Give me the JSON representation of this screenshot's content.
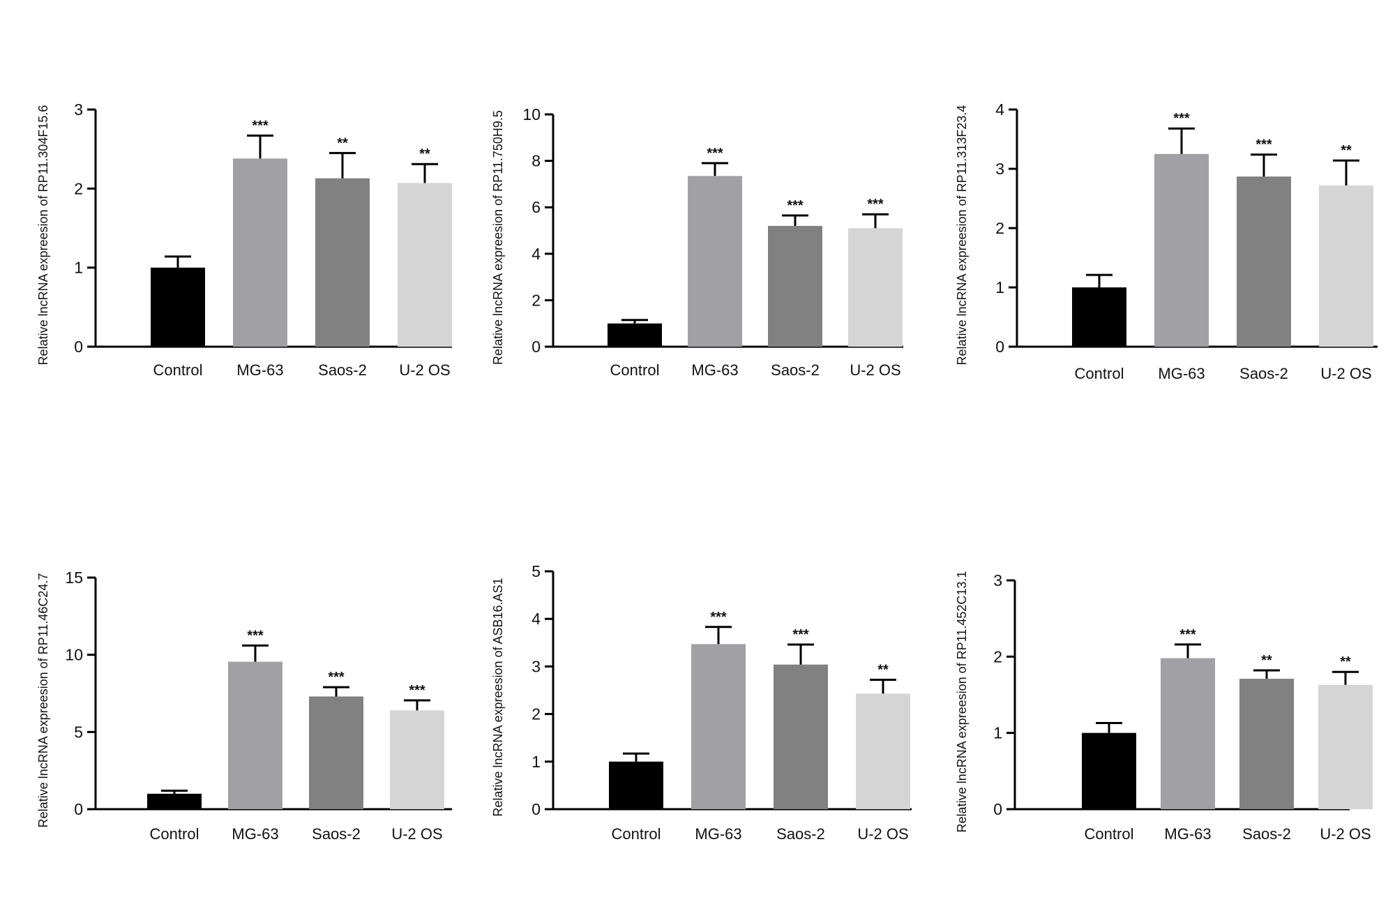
{
  "chart_data": [
    {
      "type": "bar",
      "ylabel": "Relative lncRNA expreesion of RP11.304F15.6",
      "categories": [
        "Control",
        "MG-63",
        "Saos-2",
        "U-2 OS"
      ],
      "values": [
        1.0,
        2.38,
        2.13,
        2.07
      ],
      "errors": [
        0.14,
        0.29,
        0.32,
        0.24
      ],
      "significance": [
        "",
        "***",
        "**",
        "**"
      ],
      "ylim": [
        0,
        3
      ],
      "yticks": [
        "0",
        "1",
        "2",
        "3"
      ],
      "colors": [
        "#000000",
        "#a1a1a5",
        "#818181",
        "#d5d5d5"
      ]
    },
    {
      "type": "bar",
      "ylabel": "Relative lncRNA expreesion of RP11.750H9.5",
      "categories": [
        "Control",
        "MG-63",
        "Saos-2",
        "U-2 OS"
      ],
      "values": [
        1.0,
        7.35,
        5.2,
        5.1
      ],
      "errors": [
        0.15,
        0.55,
        0.45,
        0.6
      ],
      "significance": [
        "",
        "***",
        "***",
        "***"
      ],
      "ylim": [
        0,
        10
      ],
      "yticks": [
        "0",
        "2",
        "4",
        "6",
        "8",
        "10"
      ],
      "colors": [
        "#000000",
        "#a1a1a5",
        "#818181",
        "#d5d5d5"
      ]
    },
    {
      "type": "bar",
      "ylabel": "Relative lncRNA expreesion of RP11.313F23.4",
      "categories": [
        "Control",
        "MG-63",
        "Saos-2",
        "U-2 OS"
      ],
      "values": [
        1.0,
        3.25,
        2.87,
        2.72
      ],
      "errors": [
        0.21,
        0.43,
        0.37,
        0.42
      ],
      "significance": [
        "",
        "***",
        "***",
        "**"
      ],
      "ylim": [
        0,
        4
      ],
      "yticks": [
        "0",
        "1",
        "2",
        "3",
        "4"
      ],
      "colors": [
        "#000000",
        "#a1a1a5",
        "#818181",
        "#d5d5d5"
      ]
    },
    {
      "type": "bar",
      "ylabel": "Relative lncRNA expreesion of RP11.46C24.7",
      "categories": [
        "Control",
        "MG-63",
        "Saos-2",
        "U-2 OS"
      ],
      "values": [
        1.0,
        9.55,
        7.3,
        6.4
      ],
      "errors": [
        0.2,
        1.05,
        0.6,
        0.65
      ],
      "significance": [
        "",
        "***",
        "***",
        "***"
      ],
      "ylim": [
        0,
        15
      ],
      "yticks": [
        "0",
        "5",
        "10",
        "15"
      ],
      "colors": [
        "#000000",
        "#a1a1a5",
        "#818181",
        "#d5d5d5"
      ]
    },
    {
      "type": "bar",
      "ylabel": "Relative lncRNA expreesion of ASB16.AS1",
      "categories": [
        "Control",
        "MG-63",
        "Saos-2",
        "U-2 OS"
      ],
      "values": [
        1.0,
        3.47,
        3.04,
        2.43
      ],
      "errors": [
        0.17,
        0.36,
        0.42,
        0.29
      ],
      "significance": [
        "",
        "***",
        "***",
        "**"
      ],
      "ylim": [
        0,
        5
      ],
      "yticks": [
        "0",
        "1",
        "2",
        "3",
        "4",
        "5"
      ],
      "colors": [
        "#000000",
        "#a1a1a5",
        "#818181",
        "#d5d5d5"
      ]
    },
    {
      "type": "bar",
      "ylabel": "Relative lncRNA expreesion of RP11.452C13.1",
      "categories": [
        "Control",
        "MG-63",
        "Saos-2",
        "U-2 OS"
      ],
      "values": [
        1.0,
        1.98,
        1.71,
        1.63
      ],
      "errors": [
        0.13,
        0.18,
        0.11,
        0.17
      ],
      "significance": [
        "",
        "***",
        "**",
        "**"
      ],
      "ylim": [
        0,
        3
      ],
      "yticks": [
        "0",
        "1",
        "2",
        "3"
      ],
      "colors": [
        "#000000",
        "#a1a1a5",
        "#818181",
        "#d5d5d5"
      ]
    }
  ]
}
